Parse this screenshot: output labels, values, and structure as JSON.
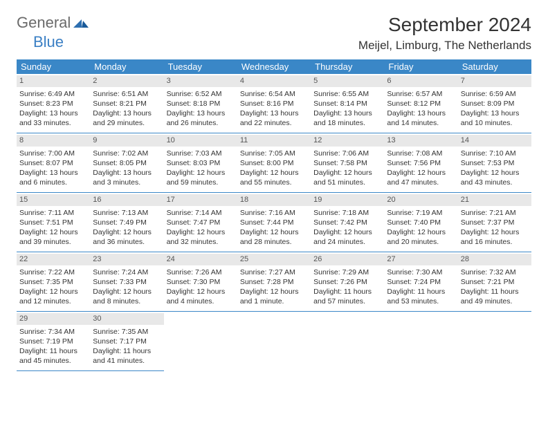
{
  "brand": {
    "part1": "General",
    "part2": "Blue"
  },
  "title": "September 2024",
  "location": "Meijel, Limburg, The Netherlands",
  "weekdays": [
    "Sunday",
    "Monday",
    "Tuesday",
    "Wednesday",
    "Thursday",
    "Friday",
    "Saturday"
  ],
  "colors": {
    "header_bg": "#3a87c7",
    "daynum_bg": "#e8e8e8",
    "border": "#3a87c7",
    "logo_gray": "#6a6a6a",
    "logo_blue": "#3a7fc4"
  },
  "days": [
    {
      "n": "1",
      "sr": "Sunrise: 6:49 AM",
      "ss": "Sunset: 8:23 PM",
      "dl": "Daylight: 13 hours and 33 minutes."
    },
    {
      "n": "2",
      "sr": "Sunrise: 6:51 AM",
      "ss": "Sunset: 8:21 PM",
      "dl": "Daylight: 13 hours and 29 minutes."
    },
    {
      "n": "3",
      "sr": "Sunrise: 6:52 AM",
      "ss": "Sunset: 8:18 PM",
      "dl": "Daylight: 13 hours and 26 minutes."
    },
    {
      "n": "4",
      "sr": "Sunrise: 6:54 AM",
      "ss": "Sunset: 8:16 PM",
      "dl": "Daylight: 13 hours and 22 minutes."
    },
    {
      "n": "5",
      "sr": "Sunrise: 6:55 AM",
      "ss": "Sunset: 8:14 PM",
      "dl": "Daylight: 13 hours and 18 minutes."
    },
    {
      "n": "6",
      "sr": "Sunrise: 6:57 AM",
      "ss": "Sunset: 8:12 PM",
      "dl": "Daylight: 13 hours and 14 minutes."
    },
    {
      "n": "7",
      "sr": "Sunrise: 6:59 AM",
      "ss": "Sunset: 8:09 PM",
      "dl": "Daylight: 13 hours and 10 minutes."
    },
    {
      "n": "8",
      "sr": "Sunrise: 7:00 AM",
      "ss": "Sunset: 8:07 PM",
      "dl": "Daylight: 13 hours and 6 minutes."
    },
    {
      "n": "9",
      "sr": "Sunrise: 7:02 AM",
      "ss": "Sunset: 8:05 PM",
      "dl": "Daylight: 13 hours and 3 minutes."
    },
    {
      "n": "10",
      "sr": "Sunrise: 7:03 AM",
      "ss": "Sunset: 8:03 PM",
      "dl": "Daylight: 12 hours and 59 minutes."
    },
    {
      "n": "11",
      "sr": "Sunrise: 7:05 AM",
      "ss": "Sunset: 8:00 PM",
      "dl": "Daylight: 12 hours and 55 minutes."
    },
    {
      "n": "12",
      "sr": "Sunrise: 7:06 AM",
      "ss": "Sunset: 7:58 PM",
      "dl": "Daylight: 12 hours and 51 minutes."
    },
    {
      "n": "13",
      "sr": "Sunrise: 7:08 AM",
      "ss": "Sunset: 7:56 PM",
      "dl": "Daylight: 12 hours and 47 minutes."
    },
    {
      "n": "14",
      "sr": "Sunrise: 7:10 AM",
      "ss": "Sunset: 7:53 PM",
      "dl": "Daylight: 12 hours and 43 minutes."
    },
    {
      "n": "15",
      "sr": "Sunrise: 7:11 AM",
      "ss": "Sunset: 7:51 PM",
      "dl": "Daylight: 12 hours and 39 minutes."
    },
    {
      "n": "16",
      "sr": "Sunrise: 7:13 AM",
      "ss": "Sunset: 7:49 PM",
      "dl": "Daylight: 12 hours and 36 minutes."
    },
    {
      "n": "17",
      "sr": "Sunrise: 7:14 AM",
      "ss": "Sunset: 7:47 PM",
      "dl": "Daylight: 12 hours and 32 minutes."
    },
    {
      "n": "18",
      "sr": "Sunrise: 7:16 AM",
      "ss": "Sunset: 7:44 PM",
      "dl": "Daylight: 12 hours and 28 minutes."
    },
    {
      "n": "19",
      "sr": "Sunrise: 7:18 AM",
      "ss": "Sunset: 7:42 PM",
      "dl": "Daylight: 12 hours and 24 minutes."
    },
    {
      "n": "20",
      "sr": "Sunrise: 7:19 AM",
      "ss": "Sunset: 7:40 PM",
      "dl": "Daylight: 12 hours and 20 minutes."
    },
    {
      "n": "21",
      "sr": "Sunrise: 7:21 AM",
      "ss": "Sunset: 7:37 PM",
      "dl": "Daylight: 12 hours and 16 minutes."
    },
    {
      "n": "22",
      "sr": "Sunrise: 7:22 AM",
      "ss": "Sunset: 7:35 PM",
      "dl": "Daylight: 12 hours and 12 minutes."
    },
    {
      "n": "23",
      "sr": "Sunrise: 7:24 AM",
      "ss": "Sunset: 7:33 PM",
      "dl": "Daylight: 12 hours and 8 minutes."
    },
    {
      "n": "24",
      "sr": "Sunrise: 7:26 AM",
      "ss": "Sunset: 7:30 PM",
      "dl": "Daylight: 12 hours and 4 minutes."
    },
    {
      "n": "25",
      "sr": "Sunrise: 7:27 AM",
      "ss": "Sunset: 7:28 PM",
      "dl": "Daylight: 12 hours and 1 minute."
    },
    {
      "n": "26",
      "sr": "Sunrise: 7:29 AM",
      "ss": "Sunset: 7:26 PM",
      "dl": "Daylight: 11 hours and 57 minutes."
    },
    {
      "n": "27",
      "sr": "Sunrise: 7:30 AM",
      "ss": "Sunset: 7:24 PM",
      "dl": "Daylight: 11 hours and 53 minutes."
    },
    {
      "n": "28",
      "sr": "Sunrise: 7:32 AM",
      "ss": "Sunset: 7:21 PM",
      "dl": "Daylight: 11 hours and 49 minutes."
    },
    {
      "n": "29",
      "sr": "Sunrise: 7:34 AM",
      "ss": "Sunset: 7:19 PM",
      "dl": "Daylight: 11 hours and 45 minutes."
    },
    {
      "n": "30",
      "sr": "Sunrise: 7:35 AM",
      "ss": "Sunset: 7:17 PM",
      "dl": "Daylight: 11 hours and 41 minutes."
    }
  ]
}
